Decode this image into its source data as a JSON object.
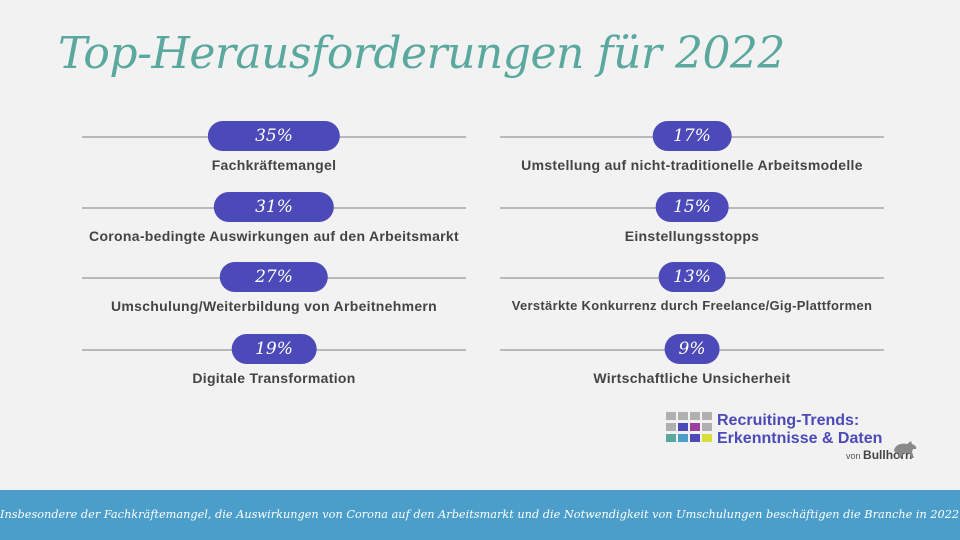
{
  "title": "Top-Herausforderungen für 2022",
  "chart_data": {
    "type": "bar",
    "title": "Top-Herausforderungen für 2022",
    "unit": "%",
    "categories": [
      "Fachkräftemangel",
      "Corona-bedingte Auswirkungen auf den Arbeitsmarkt",
      "Umschulung/Weiterbildung von Arbeitnehmern",
      "Digitale Transformation",
      "Umstellung auf nicht-traditionelle Arbeitsmodelle",
      "Einstellungsstopps",
      "Verstärkte Konkurrenz durch Freelance/Gig-Plattformen",
      "Wirtschaftliche Unsicherheit"
    ],
    "values": [
      35,
      31,
      27,
      19,
      17,
      15,
      13,
      9
    ],
    "labels": [
      "35%",
      "31%",
      "27%",
      "19%",
      "17%",
      "15%",
      "13%",
      "9%"
    ]
  },
  "logo": {
    "line1": "Recruiting-Trends:",
    "line2": "Erkenntnisse & Daten",
    "by": "von",
    "brand": "Bullhorn",
    "colors": [
      "#b0b0b0",
      "#4c4ab8",
      "#5aa89e",
      "#9b3fa0",
      "#4a9ec9",
      "#d8de3a"
    ]
  },
  "footer": "Insbesondere der Fachkräftemangel, die Auswirkungen von Corona auf den Arbeitsmarkt und die Notwendigkeit von Umschulungen beschäftigen die Branche in 2022."
}
